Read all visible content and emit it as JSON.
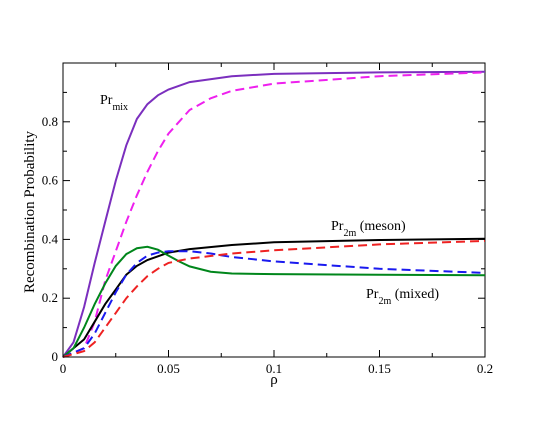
{
  "chart_data": {
    "type": "line",
    "xlabel": "ρ",
    "ylabel": "Recombination Probability",
    "xlim": [
      0,
      0.2
    ],
    "ylim": [
      0,
      1.0
    ],
    "x_ticks": [
      "0",
      "0.05",
      "0.1",
      "0.15",
      "0.2"
    ],
    "y_ticks": [
      "0",
      "0.2",
      "0.4",
      "0.6",
      "0.8"
    ],
    "grid": false,
    "legend": "none",
    "annotations": [
      {
        "main": "Pr",
        "sub": "mix",
        "suffix": ""
      },
      {
        "main": "Pr",
        "sub": "2m",
        "suffix": " (meson)"
      },
      {
        "main": "Pr",
        "sub": "2m",
        "suffix": " (mixed)"
      }
    ],
    "series": [
      {
        "color": "#7b2fbe",
        "dash": "solid",
        "points": [
          [
            0,
            0
          ],
          [
            0.005,
            0.05
          ],
          [
            0.01,
            0.17
          ],
          [
            0.015,
            0.32
          ],
          [
            0.02,
            0.46
          ],
          [
            0.025,
            0.6
          ],
          [
            0.03,
            0.72
          ],
          [
            0.035,
            0.81
          ],
          [
            0.04,
            0.86
          ],
          [
            0.045,
            0.89
          ],
          [
            0.05,
            0.91
          ],
          [
            0.06,
            0.935
          ],
          [
            0.08,
            0.955
          ],
          [
            0.1,
            0.963
          ],
          [
            0.15,
            0.968
          ],
          [
            0.2,
            0.97
          ]
        ]
      },
      {
        "color": "#ee20ee",
        "dash": "dashed",
        "points": [
          [
            0,
            0
          ],
          [
            0.01,
            0.03
          ],
          [
            0.015,
            0.12
          ],
          [
            0.02,
            0.26
          ],
          [
            0.025,
            0.36
          ],
          [
            0.03,
            0.46
          ],
          [
            0.035,
            0.55
          ],
          [
            0.04,
            0.63
          ],
          [
            0.045,
            0.7
          ],
          [
            0.05,
            0.76
          ],
          [
            0.055,
            0.8
          ],
          [
            0.06,
            0.84
          ],
          [
            0.07,
            0.88
          ],
          [
            0.08,
            0.905
          ],
          [
            0.1,
            0.93
          ],
          [
            0.15,
            0.955
          ],
          [
            0.2,
            0.968
          ]
        ]
      },
      {
        "color": "#000000",
        "dash": "solid",
        "points": [
          [
            0,
            0
          ],
          [
            0.01,
            0.06
          ],
          [
            0.015,
            0.12
          ],
          [
            0.02,
            0.18
          ],
          [
            0.025,
            0.23
          ],
          [
            0.03,
            0.28
          ],
          [
            0.035,
            0.31
          ],
          [
            0.04,
            0.33
          ],
          [
            0.05,
            0.355
          ],
          [
            0.06,
            0.367
          ],
          [
            0.08,
            0.381
          ],
          [
            0.1,
            0.39
          ],
          [
            0.15,
            0.398
          ],
          [
            0.2,
            0.402
          ]
        ]
      },
      {
        "color": "#00861b",
        "dash": "solid",
        "points": [
          [
            0,
            0
          ],
          [
            0.005,
            0.03
          ],
          [
            0.01,
            0.1
          ],
          [
            0.015,
            0.18
          ],
          [
            0.02,
            0.25
          ],
          [
            0.025,
            0.31
          ],
          [
            0.03,
            0.35
          ],
          [
            0.035,
            0.37
          ],
          [
            0.04,
            0.375
          ],
          [
            0.045,
            0.365
          ],
          [
            0.05,
            0.345
          ],
          [
            0.055,
            0.325
          ],
          [
            0.06,
            0.308
          ],
          [
            0.07,
            0.29
          ],
          [
            0.08,
            0.284
          ],
          [
            0.1,
            0.282
          ],
          [
            0.15,
            0.28
          ],
          [
            0.2,
            0.278
          ]
        ]
      },
      {
        "color": "#1a1aef",
        "dash": "dashed",
        "points": [
          [
            0,
            0
          ],
          [
            0.01,
            0.03
          ],
          [
            0.015,
            0.08
          ],
          [
            0.02,
            0.15
          ],
          [
            0.025,
            0.22
          ],
          [
            0.03,
            0.28
          ],
          [
            0.035,
            0.32
          ],
          [
            0.04,
            0.345
          ],
          [
            0.045,
            0.355
          ],
          [
            0.05,
            0.36
          ],
          [
            0.06,
            0.36
          ],
          [
            0.07,
            0.352
          ],
          [
            0.08,
            0.34
          ],
          [
            0.1,
            0.325
          ],
          [
            0.15,
            0.3
          ],
          [
            0.2,
            0.286
          ]
        ]
      },
      {
        "color": "#ee2222",
        "dash": "dashed",
        "points": [
          [
            0,
            0
          ],
          [
            0.01,
            0.02
          ],
          [
            0.015,
            0.05
          ],
          [
            0.02,
            0.1
          ],
          [
            0.025,
            0.15
          ],
          [
            0.03,
            0.2
          ],
          [
            0.035,
            0.24
          ],
          [
            0.04,
            0.275
          ],
          [
            0.045,
            0.3
          ],
          [
            0.05,
            0.32
          ],
          [
            0.06,
            0.335
          ],
          [
            0.08,
            0.352
          ],
          [
            0.1,
            0.363
          ],
          [
            0.15,
            0.383
          ],
          [
            0.2,
            0.395
          ]
        ]
      }
    ]
  }
}
